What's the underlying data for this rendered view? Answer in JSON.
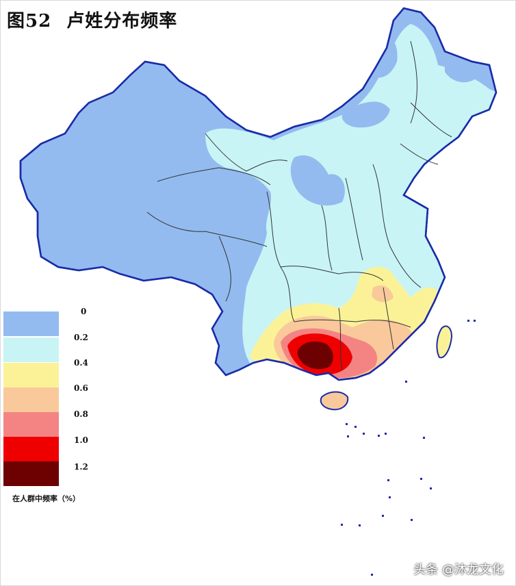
{
  "title": {
    "figure": "图52",
    "text": "卢姓分布频率"
  },
  "legend": {
    "ticks": [
      "0",
      "0.2",
      "0.4",
      "0.6",
      "0.8",
      "1.0",
      "1.2"
    ],
    "bands": [
      {
        "color": "#93bbef"
      },
      {
        "color": "#c8f4f6"
      },
      {
        "color": "#fbf298"
      },
      {
        "color": "#f9c99b"
      },
      {
        "color": "#f48484"
      },
      {
        "color": "#ef0000"
      },
      {
        "color": "#6d0000"
      }
    ],
    "caption": "在人群中频率（%）"
  },
  "map": {
    "colors": {
      "low": "#93bbef",
      "mid": "#c8f4f6",
      "yellow": "#fbf298",
      "peach": "#f9c99b",
      "pink": "#f48484",
      "red": "#ef0000",
      "dark": "#6d0000",
      "border": "#1a2ba8",
      "province": "#333333"
    }
  },
  "watermark": "头条 @沐龙文化"
}
